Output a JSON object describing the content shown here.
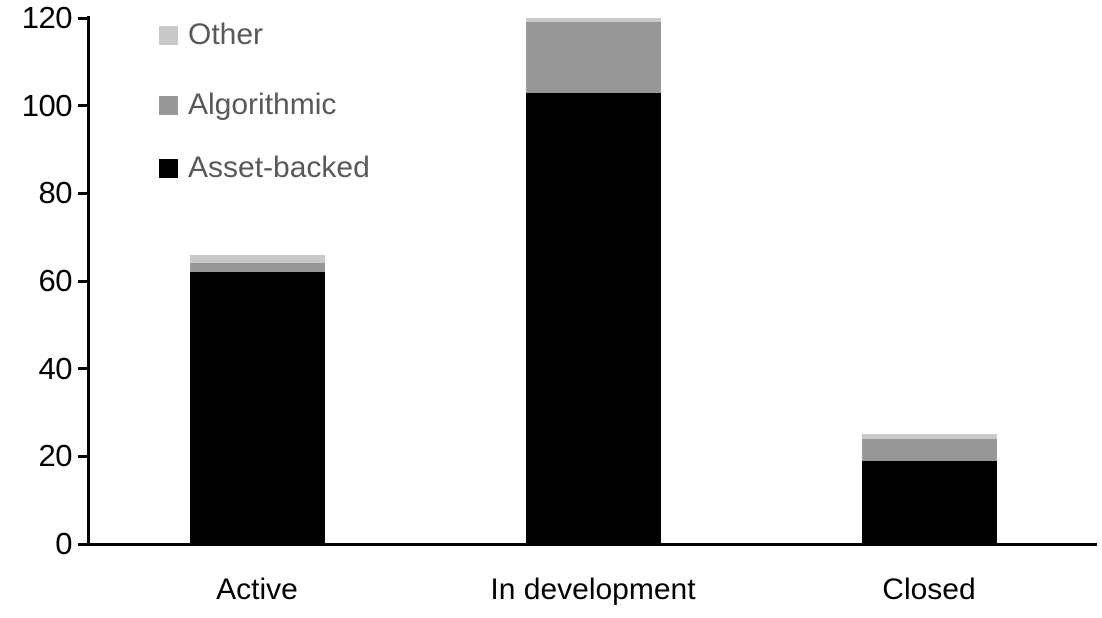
{
  "page": {
    "background": "#ffffff"
  },
  "chart_data": {
    "type": "bar",
    "stacked": true,
    "title": "",
    "xlabel": "",
    "ylabel": "",
    "categories": [
      "Active",
      "In development",
      "Closed"
    ],
    "series": [
      {
        "name": "Asset-backed",
        "color": "#000000",
        "values": [
          62,
          103,
          19
        ]
      },
      {
        "name": "Algorithmic",
        "color": "#989898",
        "values": [
          2,
          16,
          5
        ]
      },
      {
        "name": "Other",
        "color": "#c9c9c9",
        "values": [
          2,
          1,
          1
        ]
      }
    ],
    "stack_order_bottom_to_top": [
      "Asset-backed",
      "Algorithmic",
      "Other"
    ],
    "totals": [
      66,
      120,
      25
    ],
    "ylim": [
      0,
      120
    ],
    "yticks": [
      0,
      20,
      40,
      60,
      80,
      100,
      120
    ],
    "grid": false,
    "axis_color": "#000000",
    "tick_label_color": "#000000",
    "legend": {
      "position": "top-left",
      "order": [
        "Other",
        "Algorithmic",
        "Asset-backed"
      ],
      "text_color": "#595959"
    }
  }
}
